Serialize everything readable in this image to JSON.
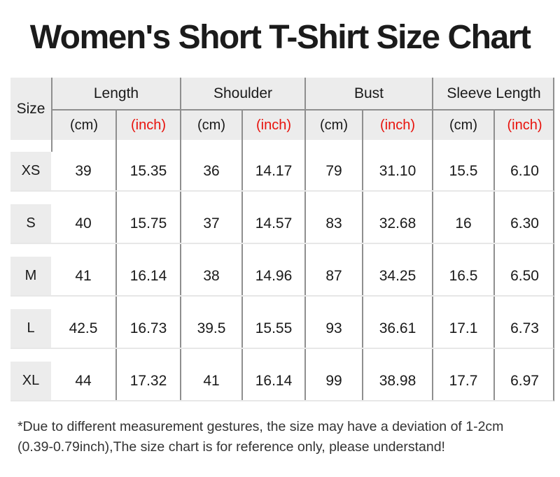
{
  "title": "Women's Short T-Shirt Size Chart",
  "colors": {
    "accent_red": "#e8120c",
    "header_bg": "#ececec",
    "grid_line": "#8f8f8f"
  },
  "table": {
    "size_header": "Size",
    "groups": [
      {
        "label": "Length"
      },
      {
        "label": "Shoulder"
      },
      {
        "label": "Bust"
      },
      {
        "label": "Sleeve Length"
      }
    ],
    "unit_cm": "(cm)",
    "unit_inch": "(inch)",
    "rows": [
      {
        "size": "XS",
        "length_cm": "39",
        "length_inch": "15.35",
        "shoulder_cm": "36",
        "shoulder_inch": "14.17",
        "bust_cm": "79",
        "bust_inch": "31.10",
        "sleeve_cm": "15.5",
        "sleeve_inch": "6.10"
      },
      {
        "size": "S",
        "length_cm": "40",
        "length_inch": "15.75",
        "shoulder_cm": "37",
        "shoulder_inch": "14.57",
        "bust_cm": "83",
        "bust_inch": "32.68",
        "sleeve_cm": "16",
        "sleeve_inch": "6.30"
      },
      {
        "size": "M",
        "length_cm": "41",
        "length_inch": "16.14",
        "shoulder_cm": "38",
        "shoulder_inch": "14.96",
        "bust_cm": "87",
        "bust_inch": "34.25",
        "sleeve_cm": "16.5",
        "sleeve_inch": "6.50"
      },
      {
        "size": "L",
        "length_cm": "42.5",
        "length_inch": "16.73",
        "shoulder_cm": "39.5",
        "shoulder_inch": "15.55",
        "bust_cm": "93",
        "bust_inch": "36.61",
        "sleeve_cm": "17.1",
        "sleeve_inch": "6.73"
      },
      {
        "size": "XL",
        "length_cm": "44",
        "length_inch": "17.32",
        "shoulder_cm": "41",
        "shoulder_inch": "16.14",
        "bust_cm": "99",
        "bust_inch": "38.98",
        "sleeve_cm": "17.7",
        "sleeve_inch": "6.97"
      }
    ]
  },
  "footnote": {
    "line1": "*Due to different measurement gestures, the size may have a deviation of 1-2cm",
    "line2": "(0.39-0.79inch),The size chart is for reference only, please understand!"
  },
  "chart_data": {
    "type": "table",
    "title": "Women's Short T-Shirt Size Chart",
    "column_groups": [
      "Size",
      "Length",
      "Shoulder",
      "Bust",
      "Sleeve Length"
    ],
    "columns": [
      "Size",
      "Length (cm)",
      "Length (inch)",
      "Shoulder (cm)",
      "Shoulder (inch)",
      "Bust (cm)",
      "Bust (inch)",
      "Sleeve Length (cm)",
      "Sleeve Length (inch)"
    ],
    "rows": [
      [
        "XS",
        39,
        15.35,
        36,
        14.17,
        79,
        31.1,
        15.5,
        6.1
      ],
      [
        "S",
        40,
        15.75,
        37,
        14.57,
        83,
        32.68,
        16,
        6.3
      ],
      [
        "M",
        41,
        16.14,
        38,
        14.96,
        87,
        34.25,
        16.5,
        6.5
      ],
      [
        "L",
        42.5,
        16.73,
        39.5,
        15.55,
        93,
        36.61,
        17.1,
        6.73
      ],
      [
        "XL",
        44,
        17.32,
        41,
        16.14,
        99,
        38.98,
        17.7,
        6.97
      ]
    ],
    "note": "*Due to different measurement gestures, the size may have a deviation of 1-2cm (0.39-0.79inch),The size chart is for reference only, please understand!"
  }
}
